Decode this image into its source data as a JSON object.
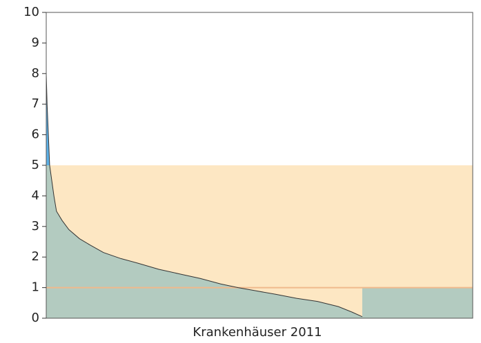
{
  "chart_data": {
    "type": "area",
    "xlabel": "Krankenhäuser 2011",
    "x": [
      0,
      0.2,
      0.5,
      0.8,
      1.3,
      1.8,
      2.4,
      3.7,
      5.3,
      7.8,
      10.2,
      13.4,
      17.5,
      21.5,
      26.4,
      31.2,
      36.1,
      40.9,
      45.0,
      49.0,
      53.9,
      58.7,
      63.6,
      68.5,
      71.7,
      74.1
    ],
    "values": [
      8.0,
      7.0,
      6.0,
      5.0,
      4.5,
      4.0,
      3.5,
      3.2,
      2.9,
      2.6,
      2.4,
      2.15,
      1.95,
      1.8,
      1.6,
      1.45,
      1.3,
      1.12,
      1.0,
      0.9,
      0.78,
      0.65,
      0.55,
      0.38,
      0.2,
      0.05
    ],
    "xlim": [
      0,
      100
    ],
    "ylim": [
      0,
      10
    ],
    "yticks": [
      0,
      1,
      2,
      3,
      4,
      5,
      6,
      7,
      8,
      9,
      10
    ],
    "band": [
      0,
      5
    ],
    "band_color": "#fde7c3",
    "threshold": 1,
    "threshold_color": "#efb98c",
    "fill_color": "#b3cbc0",
    "above_band_color": "#5cb0e6",
    "line_color": "#333333"
  }
}
